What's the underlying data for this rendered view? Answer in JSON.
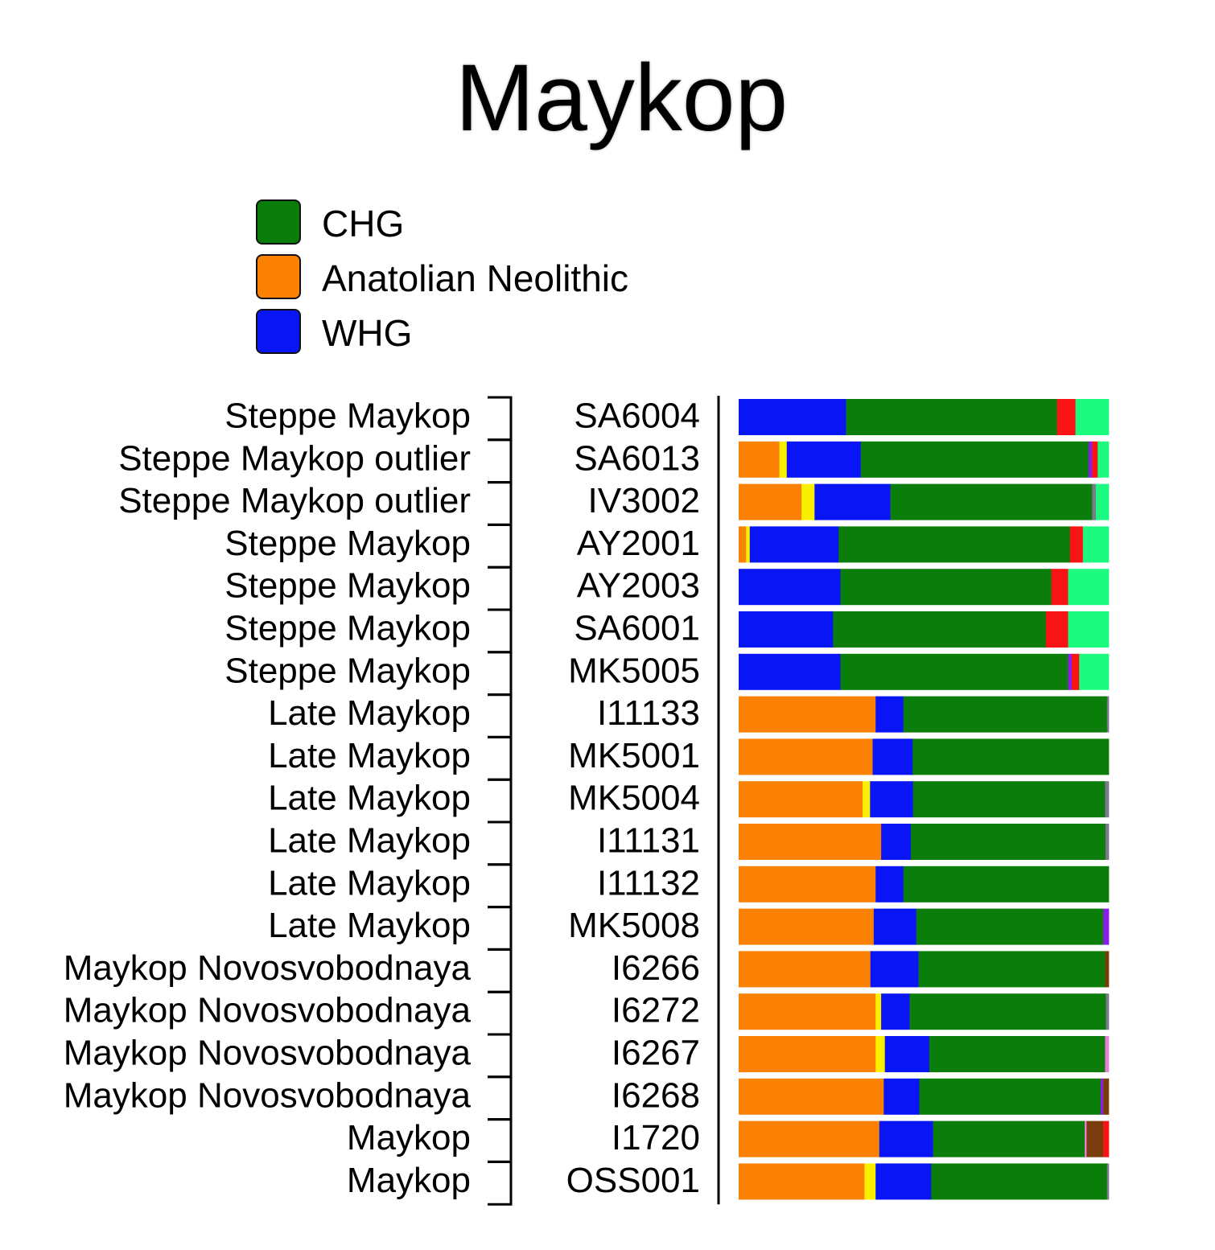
{
  "chart_data": {
    "type": "bar",
    "orientation": "horizontal",
    "stacked": true,
    "normalized": true,
    "title": "Maykop",
    "legend": {
      "placement": "top-left",
      "entries": [
        {
          "label": "CHG",
          "color": "#0a7d0a"
        },
        {
          "label": "Anatolian Neolithic",
          "color": "#fb8104"
        },
        {
          "label": "WHG",
          "color": "#0a15f6"
        }
      ]
    },
    "components": [
      {
        "key": "anatolian",
        "color": "#fb8104"
      },
      {
        "key": "yellow",
        "color": "#f8f000"
      },
      {
        "key": "whg",
        "color": "#0a15f6"
      },
      {
        "key": "chg",
        "color": "#0a7d0a"
      },
      {
        "key": "purple",
        "color": "#8a1de6"
      },
      {
        "key": "pink",
        "color": "#e87fd8"
      },
      {
        "key": "gray",
        "color": "#7a7a8a"
      },
      {
        "key": "brown",
        "color": "#7a3c0a"
      },
      {
        "key": "red",
        "color": "#f81414"
      },
      {
        "key": "ltgreen",
        "color": "#1cfb7f"
      }
    ],
    "rows": [
      {
        "group": "Steppe Maykop",
        "sample": "SA6004",
        "values": {
          "whg": 0.29,
          "chg": 0.57,
          "red": 0.05,
          "ltgreen": 0.09
        }
      },
      {
        "group": "Steppe Maykop outlier",
        "sample": "SA6013",
        "values": {
          "anatolian": 0.11,
          "yellow": 0.02,
          "whg": 0.2,
          "chg": 0.615,
          "purple": 0.01,
          "red": 0.015,
          "ltgreen": 0.03
        }
      },
      {
        "group": "Steppe Maykop outlier",
        "sample": "IV3002",
        "values": {
          "anatolian": 0.17,
          "yellow": 0.035,
          "whg": 0.205,
          "chg": 0.545,
          "gray": 0.01,
          "ltgreen": 0.035
        }
      },
      {
        "group": "Steppe Maykop",
        "sample": "AY2001",
        "values": {
          "anatolian": 0.02,
          "yellow": 0.01,
          "whg": 0.24,
          "chg": 0.625,
          "red": 0.035,
          "ltgreen": 0.07
        }
      },
      {
        "group": "Steppe Maykop",
        "sample": "AY2003",
        "values": {
          "whg": 0.275,
          "chg": 0.57,
          "red": 0.045,
          "ltgreen": 0.11
        }
      },
      {
        "group": "Steppe Maykop",
        "sample": "SA6001",
        "values": {
          "whg": 0.255,
          "chg": 0.575,
          "red": 0.06,
          "ltgreen": 0.11
        }
      },
      {
        "group": "Steppe Maykop",
        "sample": "MK5005",
        "values": {
          "whg": 0.275,
          "chg": 0.615,
          "purple": 0.01,
          "red": 0.02,
          "ltgreen": 0.08
        }
      },
      {
        "group": "Late Maykop",
        "sample": "I11133",
        "values": {
          "anatolian": 0.37,
          "whg": 0.075,
          "chg": 0.55,
          "gray": 0.005
        }
      },
      {
        "group": "Late Maykop",
        "sample": "MK5001",
        "values": {
          "anatolian": 0.362,
          "whg": 0.108,
          "chg": 0.53
        }
      },
      {
        "group": "Late Maykop",
        "sample": "MK5004",
        "values": {
          "anatolian": 0.335,
          "yellow": 0.02,
          "whg": 0.116,
          "chg": 0.519,
          "gray": 0.01
        }
      },
      {
        "group": "Late Maykop",
        "sample": "I11131",
        "values": {
          "anatolian": 0.385,
          "whg": 0.08,
          "chg": 0.526,
          "gray": 0.009
        }
      },
      {
        "group": "Late Maykop",
        "sample": "I11132",
        "values": {
          "anatolian": 0.37,
          "whg": 0.075,
          "chg": 0.555
        }
      },
      {
        "group": "Late Maykop",
        "sample": "MK5008",
        "values": {
          "anatolian": 0.365,
          "whg": 0.115,
          "chg": 0.505,
          "purple": 0.015
        }
      },
      {
        "group": "Maykop Novosvobodnaya",
        "sample": "I6266",
        "values": {
          "anatolian": 0.356,
          "whg": 0.13,
          "chg": 0.504,
          "brown": 0.01
        }
      },
      {
        "group": "Maykop Novosvobodnaya",
        "sample": "I6272",
        "values": {
          "anatolian": 0.37,
          "yellow": 0.015,
          "whg": 0.077,
          "chg": 0.53,
          "gray": 0.008
        }
      },
      {
        "group": "Maykop Novosvobodnaya",
        "sample": "I6267",
        "values": {
          "anatolian": 0.37,
          "yellow": 0.025,
          "whg": 0.12,
          "chg": 0.475,
          "pink": 0.01
        }
      },
      {
        "group": "Maykop Novosvobodnaya",
        "sample": "I6268",
        "values": {
          "anatolian": 0.392,
          "whg": 0.096,
          "chg": 0.49,
          "purple": 0.007,
          "brown": 0.015
        }
      },
      {
        "group": "Maykop",
        "sample": "I1720",
        "values": {
          "anatolian": 0.38,
          "whg": 0.145,
          "chg": 0.41,
          "red": 0.015,
          "brown": 0.045,
          "pink": 0.005
        }
      },
      {
        "group": "Maykop",
        "sample": "OSS001",
        "values": {
          "anatolian": 0.34,
          "yellow": 0.03,
          "whg": 0.15,
          "chg": 0.475,
          "gray": 0.005
        }
      }
    ]
  }
}
